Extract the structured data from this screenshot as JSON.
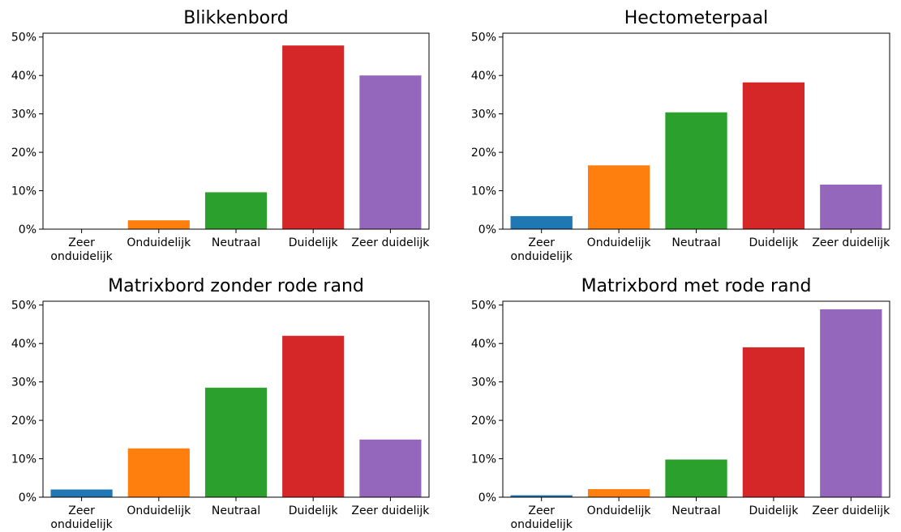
{
  "colors": {
    "Zeer onduidelijk": "#1f77b4",
    "Onduidelijk": "#ff7f0e",
    "Neutraal": "#2ca02c",
    "Duidelijk": "#d62728",
    "Zeer duidelijk": "#9467bd"
  },
  "chart_data": [
    {
      "type": "bar",
      "title": "Blikkenbord",
      "categories": [
        "Zeer\nonduidelijk",
        "Onduidelijk",
        "Neutraal",
        "Duidelijk",
        "Zeer duidelijk"
      ],
      "values": [
        0,
        2.3,
        9.6,
        47.8,
        40.0
      ],
      "ylim": [
        0,
        51
      ],
      "yticks": [
        "0%",
        "10%",
        "20%",
        "30%",
        "40%",
        "50%"
      ],
      "ytick_values": [
        0,
        10,
        20,
        30,
        40,
        50
      ],
      "grid": false
    },
    {
      "type": "bar",
      "title": "Hectometerpaal",
      "categories": [
        "Zeer\nonduidelijk",
        "Onduidelijk",
        "Neutraal",
        "Duidelijk",
        "Zeer duidelijk"
      ],
      "values": [
        3.4,
        16.6,
        30.4,
        38.2,
        11.6
      ],
      "ylim": [
        0,
        51
      ],
      "yticks": [
        "0%",
        "10%",
        "20%",
        "30%",
        "40%",
        "50%"
      ],
      "ytick_values": [
        0,
        10,
        20,
        30,
        40,
        50
      ],
      "grid": false
    },
    {
      "type": "bar",
      "title": "Matrixbord zonder rode rand",
      "categories": [
        "Zeer\nonduidelijk",
        "Onduidelijk",
        "Neutraal",
        "Duidelijk",
        "Zeer duidelijk"
      ],
      "values": [
        2.0,
        12.7,
        28.5,
        42.0,
        15.0
      ],
      "ylim": [
        0,
        51
      ],
      "yticks": [
        "0%",
        "10%",
        "20%",
        "30%",
        "40%",
        "50%"
      ],
      "ytick_values": [
        0,
        10,
        20,
        30,
        40,
        50
      ],
      "grid": false
    },
    {
      "type": "bar",
      "title": "Matrixbord met rode rand",
      "categories": [
        "Zeer\nonduidelijk",
        "Onduidelijk",
        "Neutraal",
        "Duidelijk",
        "Zeer duidelijk"
      ],
      "values": [
        0.5,
        2.1,
        9.8,
        39.0,
        48.9
      ],
      "ylim": [
        0,
        51
      ],
      "yticks": [
        "0%",
        "10%",
        "20%",
        "30%",
        "40%",
        "50%"
      ],
      "ytick_values": [
        0,
        10,
        20,
        30,
        40,
        50
      ],
      "grid": false
    }
  ]
}
